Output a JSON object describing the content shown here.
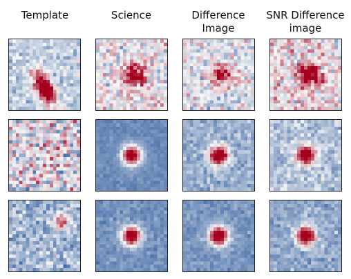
{
  "figure": {
    "columns": [
      {
        "title": "Template"
      },
      {
        "title": "Science"
      },
      {
        "title": "Difference\nImage"
      },
      {
        "title": "SNR Difference\nimage"
      }
    ],
    "rows": 3,
    "colormap": "RdBu_r",
    "colors": {
      "low": "#1f4f96",
      "mid": "#f6f6f6",
      "high": "#a4001e"
    },
    "panels": [
      [
        {
          "kind": "elongated",
          "amplitude": 0.95,
          "background": 0.42,
          "noise": 0.22
        },
        {
          "kind": "offset-blob",
          "amplitude": 0.55,
          "background": 0.55,
          "noise": 0.35
        },
        {
          "kind": "offset-blob",
          "amplitude": 0.55,
          "background": 0.5,
          "noise": 0.33
        },
        {
          "kind": "offset-blob",
          "amplitude": 0.6,
          "background": 0.6,
          "noise": 0.38
        }
      ],
      [
        {
          "kind": "pure-noise",
          "amplitude": 0.0,
          "background": 0.55,
          "noise": 0.5
        },
        {
          "kind": "compact-star",
          "amplitude": 0.95,
          "background": 0.2,
          "noise": 0.08
        },
        {
          "kind": "compact-star",
          "amplitude": 0.9,
          "background": 0.32,
          "noise": 0.18
        },
        {
          "kind": "compact-star",
          "amplitude": 0.85,
          "background": 0.38,
          "noise": 0.22
        }
      ],
      [
        {
          "kind": "faint-offset",
          "amplitude": 0.55,
          "background": 0.35,
          "noise": 0.28
        },
        {
          "kind": "compact-star",
          "amplitude": 0.95,
          "background": 0.22,
          "noise": 0.12
        },
        {
          "kind": "compact-star",
          "amplitude": 0.95,
          "background": 0.24,
          "noise": 0.12
        },
        {
          "kind": "compact-star",
          "amplitude": 0.9,
          "background": 0.3,
          "noise": 0.18
        }
      ]
    ]
  }
}
